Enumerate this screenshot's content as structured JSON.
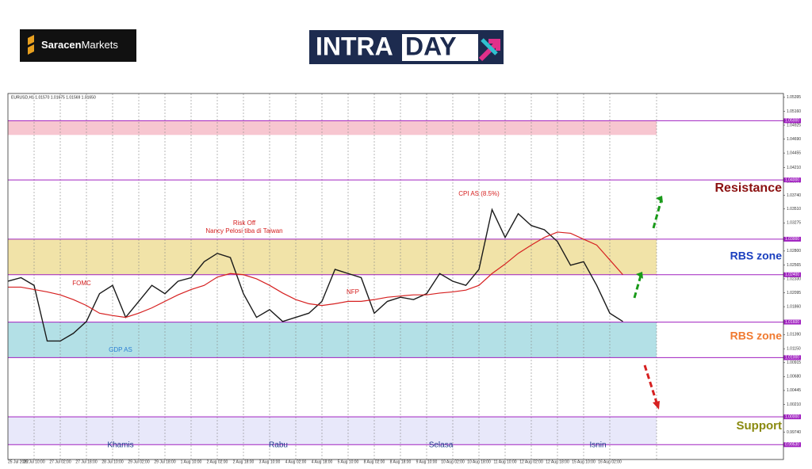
{
  "logos": {
    "brand_a": "Saracen",
    "brand_b": "Markets",
    "intraday_a": "INTRA",
    "intraday_b": "DAY"
  },
  "chart_data": {
    "type": "line",
    "header": "EURUSD,H1  1.01570 1.01675 1.01569 1.01650",
    "categories": [
      "25 Jul 2022",
      null,
      "26 Jul 10:00",
      null,
      "27 Jul 02:00",
      null,
      "27 Jul 18:00",
      null,
      "28 Jul 10:00",
      null,
      "29 Jul 02:00",
      null,
      "29 Jul 18:00",
      null,
      "1 Aug 10:00",
      null,
      "2 Aug 02:00",
      null,
      "2 Aug 18:00",
      null,
      "3 Aug 10:00",
      null,
      "4 Aug 02:00",
      null,
      "4 Aug 18:00",
      null,
      "5 Aug 10:00",
      null,
      "8 Aug 02:00",
      null,
      "8 Aug 18:00",
      null,
      "9 Aug 10:00",
      null,
      "10 Aug 02:00",
      null,
      "10 Aug 18:00",
      null,
      "11 Aug 10:00",
      null,
      "12 Aug 02:00",
      null,
      "12 Aug 18:00",
      null,
      "15 Aug 10:00",
      null,
      "16 Aug 02:00",
      null
    ],
    "series": [
      {
        "color": "#1a1a1a",
        "values": [
          1.0229,
          1.0235,
          1.0222,
          1.0128,
          1.0128,
          1.0141,
          1.0161,
          1.0208,
          1.0222,
          1.0168,
          1.0195,
          1.0222,
          1.0208,
          1.0229,
          1.0235,
          1.0262,
          1.0276,
          1.0269,
          1.0208,
          1.0168,
          1.0181,
          1.0161,
          1.0168,
          1.0175,
          1.0195,
          1.0249,
          1.0242,
          1.0235,
          1.0175,
          1.0195,
          1.0202,
          1.0198,
          1.0208,
          1.0242,
          1.0229,
          1.0222,
          1.0249,
          1.035,
          1.0303,
          1.0343,
          1.0323,
          1.0316,
          1.0296,
          1.0256,
          1.0262,
          1.0222,
          1.0175,
          1.0161
        ]
      },
      {
        "color": "#d62020",
        "values": [
          1.0219,
          1.0219,
          1.0215,
          1.0211,
          1.0206,
          1.0198,
          1.0188,
          1.0175,
          1.0171,
          1.0168,
          1.0175,
          1.0184,
          1.0195,
          1.0206,
          1.0215,
          1.0222,
          1.0236,
          1.0242,
          1.024,
          1.0233,
          1.0222,
          1.0209,
          1.0198,
          1.0191,
          1.0188,
          1.0191,
          1.0195,
          1.0195,
          1.0198,
          1.0202,
          1.0204,
          1.0206,
          1.0206,
          1.0209,
          1.0211,
          1.0214,
          1.0222,
          1.0242,
          1.0258,
          1.0276,
          1.029,
          1.0303,
          1.0312,
          1.031,
          1.03,
          1.029,
          1.0265,
          1.024
        ]
      }
    ],
    "ylim": [
      0.9928,
      1.0546
    ],
    "yticks": [
      {
        "value": 1.05395,
        "label": "1.05395"
      },
      {
        "value": 1.0516,
        "label": "1.05160"
      },
      {
        "value": 1.04925,
        "label": "1.04925"
      },
      {
        "value": 1.0469,
        "label": "1.04690"
      },
      {
        "value": 1.04455,
        "label": "1.04455"
      },
      {
        "value": 1.0421,
        "label": "1.04210"
      },
      {
        "value": 1.03975,
        "label": "1.03975"
      },
      {
        "value": 1.0374,
        "label": "1.03740"
      },
      {
        "value": 1.0351,
        "label": "1.03510"
      },
      {
        "value": 1.03275,
        "label": "1.03275"
      },
      {
        "value": 1.028,
        "label": "1.02800"
      },
      {
        "value": 1.02565,
        "label": "1.02565"
      },
      {
        "value": 1.0233,
        "label": "1.02330"
      },
      {
        "value": 1.02095,
        "label": "1.02095"
      },
      {
        "value": 1.0186,
        "label": "1.01860"
      },
      {
        "value": 1.0139,
        "label": "1.01390"
      },
      {
        "value": 1.0115,
        "label": "1.01150"
      },
      {
        "value": 1.00915,
        "label": "1.00915"
      },
      {
        "value": 1.0068,
        "label": "1.00680"
      },
      {
        "value": 1.00445,
        "label": "1.00445"
      },
      {
        "value": 1.0021,
        "label": "1.00210"
      },
      {
        "value": 0.9974,
        "label": "0.99740"
      }
    ],
    "levels": [
      {
        "value": 1.05,
        "label": "1.05000"
      },
      {
        "value": 1.04,
        "label": "1.04000"
      },
      {
        "value": 1.03,
        "label": "1.03000"
      },
      {
        "value": 1.024,
        "label": "1.02400"
      },
      {
        "value": 1.016,
        "label": "1.01600"
      },
      {
        "value": 1.01,
        "label": "1.01000"
      },
      {
        "value": 1.0,
        "label": "1.00000"
      },
      {
        "value": 0.9953,
        "label": "0.99530"
      }
    ],
    "level_color": "#a020c0",
    "zones": [
      {
        "from": 1.0476,
        "to": 1.05,
        "color": "#f7c6d0"
      },
      {
        "from": 1.024,
        "to": 1.03,
        "color": "#f1e3a8"
      },
      {
        "from": 1.01,
        "to": 1.016,
        "color": "#b3e0e6"
      },
      {
        "from": 0.9953,
        "to": 1.0,
        "color": "#e8e8fa"
      }
    ],
    "annotations": [
      "Risk Off",
      "Nancy Pelosi tiba di Taiwan",
      "CPI AS (8.5%)",
      "FOMC",
      "NFP",
      "GDP AS"
    ],
    "days": [
      "Khamis",
      "Rabu",
      "Selasa",
      "Isnin"
    ],
    "zone_labels": [
      "Resistance",
      "RBS zone",
      "RBS zone",
      "Support"
    ]
  }
}
